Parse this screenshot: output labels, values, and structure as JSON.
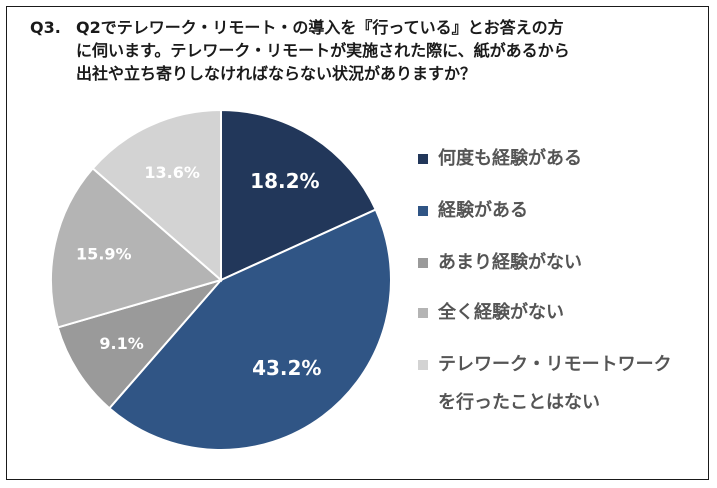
{
  "title": {
    "q_no": "Q3.",
    "text": "Q2でテレワーク・リモート・の導入を『行っている』とお答えの方\nに伺います。テレワーク・リモートが実施された際に、紙があるから\n出社や立ち寄りしなければならない状況がありますか？"
  },
  "colors": {
    "slice_1": "#22375a",
    "slice_2": "#305585",
    "slice_3": "#9a9a9a",
    "slice_4": "#b4b4b4",
    "slice_5": "#d3d3d3",
    "label_dark": "#ffffff",
    "label_light": "#ffffff",
    "legend_text": "#555555"
  },
  "chart_data": {
    "type": "pie",
    "start_angle_deg": 0,
    "direction": "clockwise",
    "slices": [
      {
        "label": "何度も経験がある",
        "value": 18.2,
        "display": "18.2%"
      },
      {
        "label": "経験がある",
        "value": 43.2,
        "display": "43.2%"
      },
      {
        "label": "あまり経験がない",
        "value": 9.1,
        "display": "9.1%"
      },
      {
        "label": "全く経験がない",
        "value": 15.9,
        "display": "15.9%"
      },
      {
        "label": "テレワーク・リモートワーク\nを行ったことはない",
        "value": 13.6,
        "display": "13.6%"
      }
    ],
    "legend_placement": "right"
  }
}
